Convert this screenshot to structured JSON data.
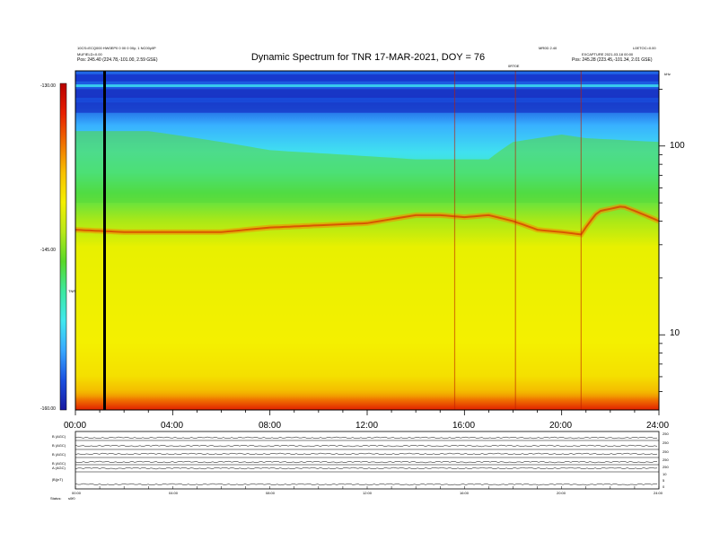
{
  "header": {
    "left_line1": "10CS=ECQ000 HW0EP0 0 00 0 00y; 1 NC00y0P",
    "left_line2": "MUFIELD=0.00",
    "left_line3": "Pos: 245.40 (224.78,-101.00, 2.59 GSE)",
    "right_line1": "MR0D 2.40",
    "right_line1b": "L0ETOC=0.00",
    "right_line2": "EXCAPTURE 2021-03-18 00:00",
    "right_line3": "Pos: 245.28 (223.45,-101.34, 2.01 GSE)",
    "right_tag": "0RT0E",
    "right_unit": "kHz"
  },
  "chart_data": {
    "type": "heatmap",
    "title": "Dynamic Spectrum for TNR 17-MAR-2021, DOY = 76",
    "x_ticks": [
      "00:00",
      "04:00",
      "08:00",
      "12:00",
      "16:00",
      "20:00",
      "24:00"
    ],
    "x_range_hours": [
      0,
      24
    ],
    "y_scale": "log",
    "y_range_khz": [
      4,
      250
    ],
    "y_ticks": [
      "100",
      "10"
    ],
    "y_tick_values": [
      100,
      10
    ],
    "colorbar": {
      "ticks": [
        "-130.00",
        "-145.00",
        "-160.00"
      ],
      "tick_values": [
        -130,
        -145,
        -160
      ],
      "range": [
        -160,
        -130
      ],
      "label": "TNR",
      "colors": [
        "#1818a0",
        "#1a50e0",
        "#38a8ff",
        "#40e8f0",
        "#3ce8a0",
        "#58d828",
        "#b8e818",
        "#f4f000",
        "#f8c000",
        "#f07000",
        "#e82000",
        "#b80000"
      ]
    },
    "features": {
      "emission_line_khz_by_hour": [
        [
          0,
          36
        ],
        [
          2,
          35
        ],
        [
          4,
          35
        ],
        [
          6,
          35
        ],
        [
          7,
          36
        ],
        [
          8,
          37
        ],
        [
          10,
          38
        ],
        [
          12,
          39
        ],
        [
          13,
          41
        ],
        [
          14,
          43
        ],
        [
          15,
          43
        ],
        [
          16,
          42
        ],
        [
          17,
          43
        ],
        [
          18,
          40
        ],
        [
          19,
          36
        ],
        [
          20,
          35
        ],
        [
          20.8,
          34
        ],
        [
          21.5,
          45
        ],
        [
          22.5,
          48
        ],
        [
          24,
          40
        ]
      ],
      "band_edge_khz_by_hour": [
        [
          0,
          120
        ],
        [
          3,
          120
        ],
        [
          5,
          110
        ],
        [
          8,
          95
        ],
        [
          11,
          90
        ],
        [
          14,
          85
        ],
        [
          17,
          85
        ],
        [
          18,
          105
        ],
        [
          20,
          115
        ],
        [
          21,
          110
        ],
        [
          24,
          105
        ]
      ],
      "marker_hour": 1.2,
      "bursts_hours": [
        15.6,
        18.1,
        20.8
      ]
    },
    "strip_panels": [
      {
        "label": "B (AGC)",
        "right_values": [
          "250",
          "0"
        ]
      },
      {
        "label": "B (AGC)",
        "right_values": [
          "250",
          "0"
        ]
      },
      {
        "label": "B (AGC)",
        "right_values": [
          "250",
          "0"
        ]
      },
      {
        "label": "B (AGC)",
        "right_values": [
          "250",
          "0"
        ]
      },
      {
        "label": "A (AGC)",
        "right_values": [
          "250",
          "0"
        ]
      },
      {
        "label": "|B|(nT)",
        "right_values": [
          "10",
          "5",
          "0"
        ]
      }
    ],
    "strip_x_ticks": [
      "00:00",
      "04:00",
      "08:00",
      "12:00",
      "16:00",
      "20:00",
      "24:00"
    ]
  },
  "footer": {
    "status": "Status:",
    "code": "s0f0"
  }
}
